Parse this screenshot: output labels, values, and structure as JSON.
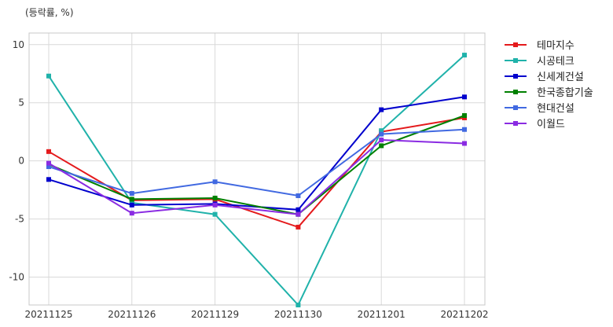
{
  "chart_data": {
    "type": "line",
    "unit_label": "(등락률, %)",
    "categories": [
      "20211125",
      "20211126",
      "20211129",
      "20211130",
      "20211201",
      "20211202"
    ],
    "ylim": [
      -12.4,
      11.0
    ],
    "yticks": [
      10,
      5,
      0,
      -5,
      -10
    ],
    "grid": true,
    "legend_position": "top-right-outside",
    "series": [
      {
        "name": "테마지수",
        "color": "#e41a1c",
        "values": [
          0.8,
          -3.4,
          -3.3,
          -5.7,
          2.5,
          3.7
        ]
      },
      {
        "name": "시공테크",
        "color": "#20b2aa",
        "values": [
          7.3,
          -3.6,
          -4.6,
          -12.4,
          2.6,
          9.1
        ]
      },
      {
        "name": "신세계건설",
        "color": "#0000cd",
        "values": [
          -1.6,
          -3.8,
          -3.7,
          -4.2,
          4.4,
          5.5
        ]
      },
      {
        "name": "한국종합기술",
        "color": "#008000",
        "values": [
          -0.3,
          -3.3,
          -3.2,
          -4.6,
          1.3,
          3.9
        ]
      },
      {
        "name": "현대건설",
        "color": "#4169e1",
        "values": [
          -0.5,
          -2.8,
          -1.8,
          -3.0,
          2.3,
          2.7
        ]
      },
      {
        "name": "이월드",
        "color": "#8a2be2",
        "values": [
          -0.2,
          -4.5,
          -3.8,
          -4.6,
          1.8,
          1.5
        ]
      }
    ]
  }
}
